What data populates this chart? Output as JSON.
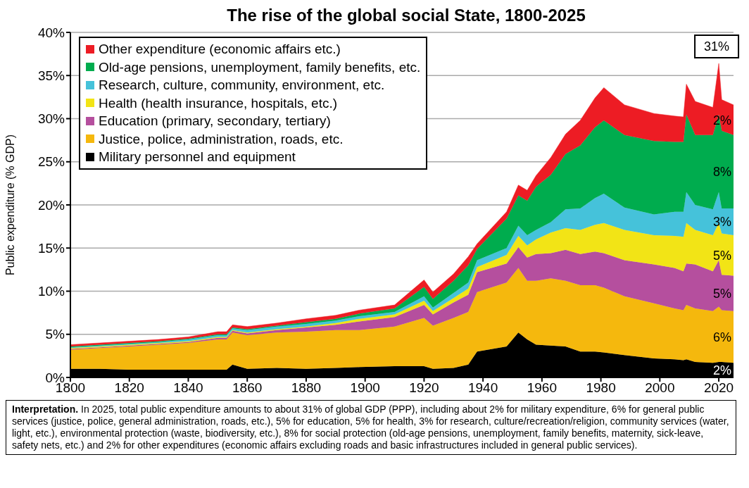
{
  "chart_data": {
    "type": "area",
    "stacked": true,
    "title": "The rise of the global social State, 1800-2025",
    "ylabel": "Public expenditure (% GDP)",
    "x": [
      1800,
      1810,
      1820,
      1830,
      1840,
      1850,
      1853,
      1855,
      1860,
      1870,
      1880,
      1890,
      1898,
      1910,
      1920,
      1923,
      1930,
      1935,
      1938,
      1948,
      1952,
      1955,
      1958,
      1963,
      1968,
      1973,
      1978,
      1981,
      1988,
      1998,
      2005,
      2008,
      2009,
      2012,
      2018,
      2020,
      2021,
      2025
    ],
    "series": [
      {
        "name": "Military personnel and equipment",
        "color": "#000000",
        "values": [
          1.0,
          1.0,
          0.9,
          0.9,
          0.9,
          0.9,
          0.9,
          1.5,
          1.0,
          1.1,
          1.0,
          1.1,
          1.2,
          1.3,
          1.3,
          1.0,
          1.1,
          1.5,
          3.0,
          3.6,
          5.2,
          4.4,
          3.8,
          3.7,
          3.6,
          3.0,
          3.0,
          2.9,
          2.6,
          2.2,
          2.1,
          2.0,
          2.1,
          1.8,
          1.7,
          1.8,
          1.8,
          1.7
        ]
      },
      {
        "name": "Justice, police, administration, roads, etc.",
        "color": "#f5b80d",
        "values": [
          2.2,
          2.4,
          2.7,
          2.9,
          3.1,
          3.5,
          3.5,
          3.7,
          3.9,
          4.1,
          4.3,
          4.4,
          4.3,
          4.6,
          5.6,
          5.0,
          5.8,
          6.1,
          6.9,
          7.4,
          7.5,
          6.8,
          7.4,
          7.8,
          7.6,
          7.7,
          7.7,
          7.5,
          6.8,
          6.4,
          5.9,
          5.8,
          6.3,
          6.2,
          6.0,
          6.4,
          6.0,
          6.0
        ]
      },
      {
        "name": "Education (primary, secondary, tertiary)",
        "color": "#b54f9e",
        "values": [
          0.1,
          0.1,
          0.1,
          0.1,
          0.1,
          0.2,
          0.2,
          0.2,
          0.2,
          0.3,
          0.5,
          0.6,
          1.0,
          1.1,
          1.5,
          1.3,
          1.8,
          2.0,
          2.3,
          2.2,
          2.4,
          2.7,
          3.1,
          2.9,
          3.6,
          3.6,
          3.9,
          4.0,
          4.2,
          4.5,
          4.7,
          4.5,
          4.8,
          5.1,
          4.6,
          5.4,
          4.1,
          4.1
        ]
      },
      {
        "name": "Health (health insurance, hospitals, etc.)",
        "color": "#f2e416",
        "values": [
          0.1,
          0.1,
          0.1,
          0.1,
          0.1,
          0.1,
          0.1,
          0.1,
          0.1,
          0.1,
          0.1,
          0.2,
          0.3,
          0.3,
          0.5,
          0.4,
          0.5,
          0.7,
          0.6,
          1.0,
          1.3,
          1.4,
          1.7,
          2.4,
          2.5,
          2.8,
          3.1,
          3.5,
          3.5,
          3.4,
          3.7,
          4.0,
          4.7,
          4.0,
          4.2,
          4.3,
          4.8,
          4.7
        ]
      },
      {
        "name": "Research, culture, community, environment, etc.",
        "color": "#45c2da",
        "values": [
          0.1,
          0.1,
          0.1,
          0.1,
          0.2,
          0.2,
          0.2,
          0.2,
          0.3,
          0.3,
          0.3,
          0.3,
          0.3,
          0.3,
          0.5,
          0.4,
          0.6,
          0.7,
          0.8,
          0.8,
          1.2,
          1.2,
          1.1,
          1.2,
          2.2,
          2.5,
          3.1,
          3.4,
          2.6,
          2.4,
          2.8,
          2.9,
          3.6,
          2.9,
          3.0,
          3.6,
          2.9,
          3.1
        ]
      },
      {
        "name": "Old-age pensions, unemployment, family benefits, etc.",
        "color": "#00ac4e",
        "values": [
          0.1,
          0.1,
          0.1,
          0.1,
          0.1,
          0.1,
          0.1,
          0.1,
          0.1,
          0.1,
          0.2,
          0.2,
          0.3,
          0.4,
          1.1,
          1.0,
          1.4,
          2.0,
          1.3,
          3.4,
          3.5,
          4.0,
          5.0,
          5.5,
          6.4,
          7.3,
          8.2,
          8.5,
          8.4,
          8.5,
          8.1,
          8.1,
          9.0,
          8.1,
          8.6,
          9.0,
          9.0,
          8.5
        ]
      },
      {
        "name": "Other expenditure (economic affairs etc.)",
        "color": "#ed1c24",
        "values": [
          0.2,
          0.2,
          0.2,
          0.2,
          0.2,
          0.3,
          0.3,
          0.3,
          0.3,
          0.3,
          0.4,
          0.4,
          0.4,
          0.4,
          0.8,
          0.8,
          0.8,
          1.0,
          0.6,
          0.8,
          1.2,
          1.2,
          1.3,
          2.0,
          2.3,
          2.9,
          3.4,
          3.8,
          3.5,
          3.2,
          3.0,
          2.9,
          3.5,
          3.9,
          3.2,
          5.9,
          3.6,
          3.5
        ]
      }
    ],
    "xlim": [
      1800,
      2025
    ],
    "xticks": [
      1800,
      1820,
      1840,
      1860,
      1880,
      1900,
      1920,
      1940,
      1960,
      1980,
      2000,
      2020
    ],
    "ylim": [
      0,
      40
    ],
    "yticks": [
      {
        "value": 0,
        "label": "0%"
      },
      {
        "value": 5,
        "label": "5%"
      },
      {
        "value": 10,
        "label": "10%"
      },
      {
        "value": 15,
        "label": "15%"
      },
      {
        "value": 20,
        "label": "20%"
      },
      {
        "value": 25,
        "label": "25%"
      },
      {
        "value": 30,
        "label": "30%"
      },
      {
        "value": 35,
        "label": "35%"
      },
      {
        "value": 40,
        "label": "40%"
      }
    ],
    "grid": "y",
    "legend": "top left",
    "annotations": [
      "31%",
      "2%",
      "8%",
      "3%",
      "5%",
      "5%",
      "6%",
      "2%",
      "Interpretation.",
      "In 2025, total public expenditure amounts to about 31% of global GDP (PPP), including about 2% for military expenditure, 6% for general public services (justice, police, general administration, roads, etc.), 5% for education, 5% for health, 3% for research, culture/recreation/religion, community services (water, light, etc.), environmental protection (waste, biodiversity, etc.), 8% for social protection (old-age pensions, unemployment, family benefits, maternity, sick-leave, safety nets, etc.) and 2% for other expenditures (economic affairs excluding roads and basic infrastructures included in general public services)."
    ]
  }
}
